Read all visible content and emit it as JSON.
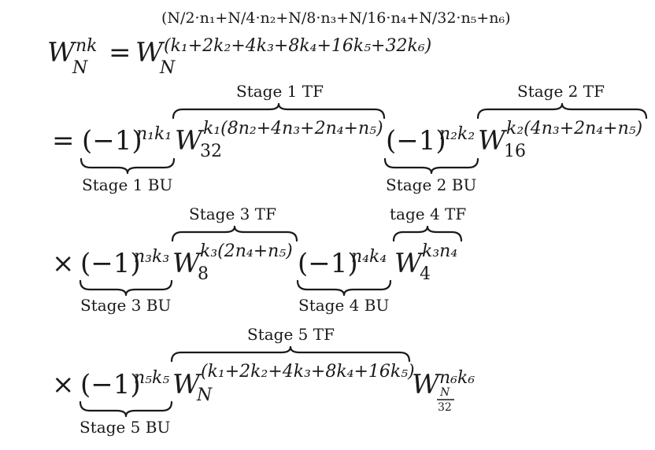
{
  "header": {
    "exponent_top": "(N/2·n₁+N/4·n₂+N/8·n₃+N/16·n₄+N/32·n₅+n₆)",
    "lhs_base": "W",
    "lhs_sup": "nk",
    "lhs_sub": "N",
    "equals": "=",
    "rhs_base": "W",
    "rhs_sup": "(k₁+2k₂+4k₃+8k₄+16k₅+32k₆)",
    "rhs_sub": "N"
  },
  "line1": {
    "eq_sign": "=",
    "f1_base": "(−1)",
    "f1_sup": "n₁k₁",
    "w1_base": "W",
    "w1_sup": "k₁(8n₂+4n₃+2n₄+n₅)",
    "w1_sub": "32",
    "f2_base": "(−1)",
    "f2_sup": "n₂k₂",
    "w2_base": "W",
    "w2_sup": "k₂(4n₃+2n₄+n₅)",
    "w2_sub": "16",
    "tf1_label": "Stage 1 TF",
    "tf2_label": "Stage 2 TF",
    "bu1_label": "Stage 1 BU",
    "bu2_label": "Stage 2 BU"
  },
  "line2": {
    "times": "×",
    "f3_base": "(−1)",
    "f3_sup": "n₃k₃",
    "w3_base": "W",
    "w3_sup": "k₃(2n₄+n₅)",
    "w3_sub": "8",
    "f4_base": "(−1)",
    "f4_sup": "n₄k₄",
    "w4_base": "W",
    "w4_sup": "k₃n₄",
    "w4_sub": "4",
    "tf3_label": "Stage 3 TF",
    "tf4_label": "tage 4 TF",
    "bu3_label": "Stage 3 BU",
    "bu4_label": "Stage 4 BU"
  },
  "line3": {
    "times": "×",
    "f5_base": "(−1)",
    "f5_sup": "n₅k₅",
    "w5_base": "W",
    "w5_sup": "(k₁+2k₂+4k₃+8k₄+16k₅)",
    "w5_sub": "N",
    "w6_base": "W",
    "w6_sup": "n₆k₆",
    "w6_sub_num": "N",
    "w6_sub_den": "32",
    "tf5_label": "Stage 5 TF",
    "bu5_label": "Stage 5 BU"
  }
}
